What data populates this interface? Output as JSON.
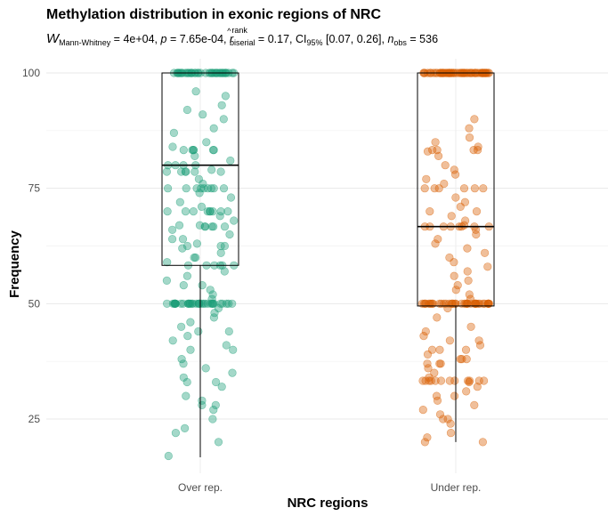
{
  "chart_data": {
    "type": "box",
    "title": "Methylation distribution in exonic regions of NRC",
    "subtitle": {
      "W_symbol": "W",
      "W_sub": "Mann-Whitney",
      "W_value": " = 4e+04, ",
      "p_symbol": "p",
      "p_value": " = 7.65e-04, ",
      "r_symbol": "r",
      "r_hat": "^",
      "r_sup": "rank",
      "r_sub": "biserial",
      "r_value": " = 0.17, CI",
      "ci_sub": "95%",
      "ci_value": " [0.07, 0.26], ",
      "n_symbol": "n",
      "n_sub": "obs",
      "n_value": " = 536"
    },
    "xlabel": "NRC regions",
    "ylabel": "Frequency",
    "categories": [
      "Over rep.",
      "Under rep."
    ],
    "ylim": [
      14,
      102
    ],
    "yticks": [
      25,
      50,
      75,
      100
    ],
    "grid": true,
    "colors": {
      "Over rep.": "#1b9e77",
      "Under rep.": "#d95f02"
    },
    "boxes": [
      {
        "category": "Over rep.",
        "whisker_low": 16.7,
        "q1": 58.3,
        "median": 80,
        "q3": 100,
        "whisker_high": 100
      },
      {
        "category": "Under rep.",
        "whisker_low": 20,
        "q1": 49.5,
        "median": 66.7,
        "q3": 100,
        "whisker_high": 100
      }
    ],
    "points": {
      "Over rep.": [
        100,
        100,
        100,
        100,
        100,
        100,
        100,
        100,
        100,
        100,
        100,
        100,
        100,
        100,
        100,
        100,
        100,
        100,
        100,
        100,
        100,
        100,
        100,
        100,
        100,
        100,
        100,
        100,
        100,
        100,
        100,
        100,
        100,
        100,
        100,
        100,
        100,
        100,
        100,
        100,
        96,
        95,
        93,
        92,
        91,
        90,
        88,
        87,
        85,
        84,
        83.3,
        83.3,
        83.3,
        83.3,
        83.3,
        83.3,
        82,
        81,
        80,
        80,
        80,
        80,
        79,
        78.6,
        78.6,
        78.6,
        78.6,
        78.6,
        78.6,
        77,
        76,
        75,
        75,
        75,
        75,
        75,
        75,
        75,
        75,
        75,
        74,
        73,
        72,
        71,
        70,
        70,
        70,
        70,
        70,
        70,
        70,
        70,
        70,
        69,
        68,
        67,
        67,
        66.7,
        66.7,
        66.7,
        66.7,
        66.7,
        66,
        65,
        64,
        64,
        63,
        62.5,
        62.5,
        62.5,
        62,
        61,
        60,
        60,
        59,
        58.3,
        58.3,
        58.3,
        58.3,
        58.3,
        58.3,
        57,
        56,
        55,
        54,
        54,
        53,
        52,
        51,
        50,
        50,
        50,
        50,
        50,
        50,
        50,
        50,
        50,
        50,
        50,
        50,
        50,
        50,
        50,
        50,
        50,
        50,
        50,
        50,
        50,
        50,
        50,
        50,
        50,
        50,
        50,
        50,
        50,
        50,
        50,
        50,
        50,
        50,
        50,
        49,
        48,
        47,
        46,
        45,
        44,
        44,
        43,
        42,
        41,
        40,
        40,
        38,
        37,
        36,
        35,
        34,
        33,
        33,
        32,
        30,
        29,
        28,
        28,
        27,
        25,
        23,
        22,
        20,
        17
      ],
      "Under rep.": [
        100,
        100,
        100,
        100,
        100,
        100,
        100,
        100,
        100,
        100,
        100,
        100,
        100,
        100,
        100,
        100,
        100,
        100,
        100,
        100,
        100,
        100,
        100,
        100,
        100,
        100,
        100,
        100,
        100,
        100,
        100,
        100,
        100,
        100,
        100,
        100,
        100,
        100,
        100,
        100,
        100,
        100,
        100,
        100,
        100,
        100,
        100,
        100,
        100,
        100,
        100,
        100,
        100,
        100,
        100,
        100,
        100,
        100,
        100,
        100,
        90,
        88,
        86,
        85,
        84,
        83.3,
        83.3,
        83.3,
        83.3,
        83,
        82,
        80,
        79,
        78,
        77,
        76,
        75,
        75,
        75,
        75,
        75,
        75,
        73,
        72,
        71,
        70,
        70,
        69,
        68,
        67,
        66.7,
        66.7,
        66.7,
        66.7,
        66.7,
        66.7,
        66.7,
        66.7,
        66,
        65,
        64,
        63,
        62,
        61,
        60,
        59,
        58,
        57,
        56,
        55,
        54,
        53,
        52,
        51,
        50,
        50,
        50,
        50,
        50,
        50,
        50,
        50,
        50,
        50,
        50,
        50,
        50,
        50,
        50,
        50,
        50,
        50,
        50,
        50,
        50,
        50,
        50,
        50,
        50,
        50,
        50,
        50,
        50,
        50,
        50,
        50,
        50,
        50,
        50,
        50,
        50,
        50,
        50,
        50,
        49,
        47,
        45,
        44,
        43,
        42,
        42,
        41,
        40,
        40,
        40,
        39,
        38,
        38,
        38,
        37,
        37,
        37,
        36,
        35,
        34,
        33.3,
        33.3,
        33.3,
        33.3,
        33.3,
        33.3,
        33.3,
        33.3,
        33.3,
        33.3,
        33.3,
        33.3,
        33,
        32,
        31,
        30,
        30,
        29,
        28,
        27,
        26,
        25,
        25,
        24,
        22,
        21,
        20,
        20
      ]
    }
  }
}
